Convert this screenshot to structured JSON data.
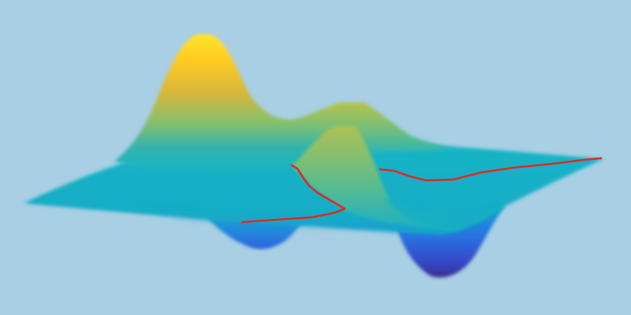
{
  "scene": {
    "background_color": "#a8cfe3",
    "colormap": [
      "#3b2d8f",
      "#2a6fe0",
      "#1aa0d4",
      "#16b4c6",
      "#5cbd8c",
      "#a8c150",
      "#f0c22b",
      "#ffe52a"
    ],
    "path_color": "#e02a22",
    "surface_features": [
      "tall-peak",
      "small-peak",
      "folded-sheet-peak",
      "left-valley",
      "deep-right-valley",
      "flat-plateau"
    ]
  }
}
